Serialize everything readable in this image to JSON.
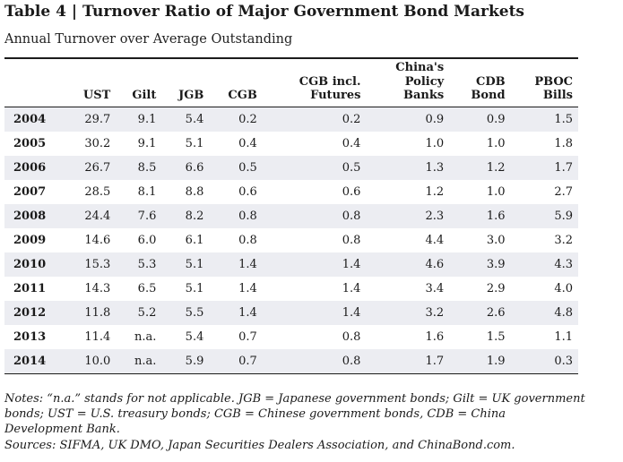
{
  "title": "Table 4 | Turnover Ratio of Major Government Bond Markets",
  "subtitle": "Annual Turnover over Average Outstanding",
  "columns": {
    "year": "",
    "ust": "UST",
    "gilt": "Gilt",
    "jgb": "JGB",
    "cgb": "CGB",
    "cgb_futures": [
      "CGB incl.",
      "Futures"
    ],
    "policy_banks": [
      "China's",
      "Policy",
      "Banks"
    ],
    "cdb": [
      "CDB",
      "Bond"
    ],
    "pboc": [
      "PBOC",
      "Bills"
    ]
  },
  "rows": [
    [
      "2004",
      "29.7",
      "9.1",
      "5.4",
      "0.2",
      "0.2",
      "0.9",
      "0.9",
      "1.5"
    ],
    [
      "2005",
      "30.2",
      "9.1",
      "5.1",
      "0.4",
      "0.4",
      "1.0",
      "1.0",
      "1.8"
    ],
    [
      "2006",
      "26.7",
      "8.5",
      "6.6",
      "0.5",
      "0.5",
      "1.3",
      "1.2",
      "1.7"
    ],
    [
      "2007",
      "28.5",
      "8.1",
      "8.8",
      "0.6",
      "0.6",
      "1.2",
      "1.0",
      "2.7"
    ],
    [
      "2008",
      "24.4",
      "7.6",
      "8.2",
      "0.8",
      "0.8",
      "2.3",
      "1.6",
      "5.9"
    ],
    [
      "2009",
      "14.6",
      "6.0",
      "6.1",
      "0.8",
      "0.8",
      "4.4",
      "3.0",
      "3.2"
    ],
    [
      "2010",
      "15.3",
      "5.3",
      "5.1",
      "1.4",
      "1.4",
      "4.6",
      "3.9",
      "4.3"
    ],
    [
      "2011",
      "14.3",
      "6.5",
      "5.1",
      "1.4",
      "1.4",
      "3.4",
      "2.9",
      "4.0"
    ],
    [
      "2012",
      "11.8",
      "5.2",
      "5.5",
      "1.4",
      "1.4",
      "3.2",
      "2.6",
      "4.8"
    ],
    [
      "2013",
      "11.4",
      "n.a.",
      "5.4",
      "0.7",
      "0.8",
      "1.6",
      "1.5",
      "1.1"
    ],
    [
      "2014",
      "10.0",
      "n.a.",
      "5.9",
      "0.7",
      "0.8",
      "1.7",
      "1.9",
      "0.3"
    ]
  ],
  "notes": "Notes: “n.a.” stands for not applicable. JGB = Japanese government bonds; Gilt = UK government bonds; UST = U.S. treasury bonds; CGB = Chinese government bonds, CDB = China Development Bank.",
  "sources": "Sources: SIFMA, UK DMO, Japan Securities Dealers Association, and ChinaBond.com.",
  "colors": {
    "row_shade": "#ecedf2",
    "rule": "#1b1b1b"
  }
}
